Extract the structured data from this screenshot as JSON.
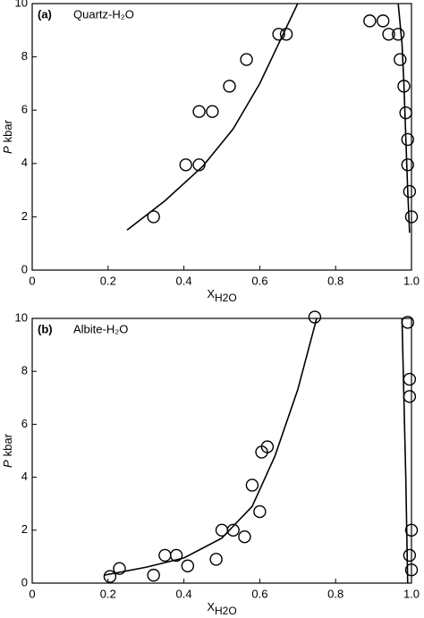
{
  "chart_data": [
    {
      "type": "scatter",
      "panel_label": "(a)",
      "annotation": "Quartz-H₂O",
      "x_label": {
        "main": "X",
        "subscript": "H2O"
      },
      "y_label": {
        "symbol": "P",
        "unit": "kbar"
      },
      "xlim": [
        0,
        1
      ],
      "xticks": [
        0,
        0.2,
        0.4,
        0.6,
        0.8,
        {
          "value": 1,
          "label": "1.0"
        }
      ],
      "ylim": [
        0,
        10
      ],
      "yticks": [
        0,
        2,
        4,
        6,
        8,
        10
      ],
      "series": [
        {
          "style": "marker",
          "color": "#000000",
          "x": [
            0.32,
            0.405,
            0.44,
            0.44,
            0.475,
            0.52,
            0.565,
            0.65,
            0.67,
            0.89,
            0.925,
            0.94,
            0.965,
            0.97,
            0.98,
            0.985,
            0.99,
            0.99,
            0.995,
            1.0
          ],
          "values": [
            2.0,
            3.95,
            3.95,
            5.95,
            5.95,
            6.9,
            7.9,
            8.85,
            8.85,
            9.35,
            9.35,
            8.85,
            8.85,
            7.9,
            6.9,
            5.9,
            4.9,
            3.95,
            2.95,
            2.0
          ]
        },
        {
          "style": "line",
          "color": "#000000",
          "x": [
            0.25,
            0.35,
            0.45,
            0.53,
            0.6,
            0.65,
            0.7
          ],
          "values": [
            1.5,
            2.6,
            3.9,
            5.3,
            7.0,
            8.5,
            10
          ]
        },
        {
          "style": "line",
          "color": "#000000",
          "x": [
            0.995,
            0.99,
            0.985,
            0.98,
            0.975,
            0.965
          ],
          "values": [
            1.4,
            3,
            5,
            7,
            8.5,
            10
          ]
        }
      ]
    },
    {
      "type": "scatter",
      "panel_label": "(b)",
      "annotation": "Albite-H₂O",
      "x_label": {
        "main": "X",
        "subscript": "H2O"
      },
      "y_label": {
        "symbol": "P",
        "unit": "kbar"
      },
      "xlim": [
        0,
        1
      ],
      "xticks": [
        0,
        0.2,
        0.4,
        0.6,
        0.8,
        {
          "value": 1,
          "label": "1.0"
        }
      ],
      "ylim": [
        0,
        10
      ],
      "yticks": [
        0,
        2,
        4,
        6,
        8,
        10
      ],
      "series": [
        {
          "style": "marker",
          "color": "#000000",
          "x": [
            0.205,
            0.23,
            0.32,
            0.35,
            0.38,
            0.41,
            0.485,
            0.5,
            0.53,
            0.56,
            0.58,
            0.605,
            0.62,
            0.6,
            0.745,
            0.99,
            0.995,
            0.995,
            0.995,
            1.0,
            1.0
          ],
          "values": [
            0.25,
            0.55,
            0.3,
            1.05,
            1.05,
            0.65,
            0.9,
            2.0,
            2.0,
            1.75,
            3.7,
            4.95,
            5.15,
            2.7,
            10.05,
            9.85,
            7.7,
            7.05,
            1.05,
            2.0,
            0.5
          ]
        },
        {
          "style": "line",
          "color": "#000000",
          "x": [
            0.19,
            0.3,
            0.4,
            0.5,
            0.58,
            0.64,
            0.7,
            0.75
          ],
          "values": [
            0.3,
            0.6,
            0.95,
            1.7,
            2.9,
            4.8,
            7.3,
            10
          ]
        },
        {
          "style": "line",
          "color": "#000000",
          "x": [
            0.99,
            0.985,
            0.98,
            0.975
          ],
          "values": [
            0,
            4,
            7,
            10
          ]
        }
      ]
    }
  ]
}
